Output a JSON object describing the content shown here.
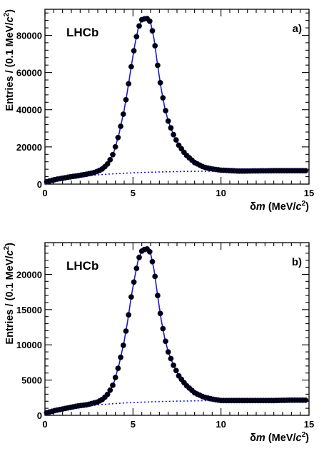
{
  "chart_data": [
    {
      "type": "scatter",
      "panel_label": "a)",
      "experiment_label": "LHCb",
      "xlabel": "δm (MeV/c²)",
      "ylabel": "Entries / (0.1 MeV/c²)",
      "xlim": [
        0,
        15
      ],
      "ylim": [
        0,
        94000
      ],
      "xticks": [
        0,
        5,
        10,
        15
      ],
      "xtick_labels": [
        "0",
        "5",
        "10",
        "15"
      ],
      "yticks": [
        0,
        20000,
        40000,
        60000,
        80000
      ],
      "ytick_labels": [
        "0",
        "20000",
        "40000",
        "60000",
        "80000"
      ],
      "peak": {
        "x": 5.85,
        "y": 89000
      },
      "background": {
        "start": 1000,
        "end": 7200
      },
      "colors": {
        "data": "#000000",
        "fit": "#1a1ad0"
      },
      "series": [
        {
          "kind": "data",
          "x": [
            0.0,
            0.3,
            0.6,
            0.9,
            1.2,
            1.5,
            1.8,
            2.1,
            2.4,
            2.7,
            3.0,
            3.3,
            3.6,
            3.9,
            4.2,
            4.5,
            4.7,
            4.9,
            5.1,
            5.3,
            5.5,
            5.7,
            5.85,
            6.0,
            6.2,
            6.4,
            6.6,
            6.8,
            7.0,
            7.3,
            7.6,
            8.0,
            8.5,
            9.0,
            9.5,
            10.0,
            11.0,
            12.0,
            13.0,
            14.0,
            15.0
          ],
          "y": [
            1000,
            1800,
            2500,
            3000,
            3500,
            4000,
            4400,
            4900,
            5400,
            6000,
            6900,
            8400,
            11300,
            16700,
            26700,
            39800,
            50900,
            63100,
            74600,
            83900,
            88400,
            89000,
            89000,
            86900,
            77900,
            63900,
            51400,
            41400,
            33900,
            26600,
            20900,
            15800,
            11600,
            9200,
            8100,
            7500,
            7000,
            7100,
            7200,
            7200,
            7200
          ]
        }
      ]
    },
    {
      "type": "scatter",
      "panel_label": "b)",
      "experiment_label": "LHCb",
      "xlabel": "δm (MeV/c²)",
      "ylabel": "Entries / (0.1 MeV/c²)",
      "xlim": [
        0,
        15
      ],
      "ylim": [
        0,
        24500
      ],
      "xticks": [
        0,
        5,
        10,
        15
      ],
      "xtick_labels": [
        "0",
        "5",
        "10",
        "15"
      ],
      "yticks": [
        0,
        5000,
        10000,
        15000,
        20000
      ],
      "ytick_labels": [
        "0",
        "5000",
        "10000",
        "15000",
        "20000"
      ],
      "peak": {
        "x": 5.85,
        "y": 23600
      },
      "background": {
        "start": 300,
        "end": 2150
      },
      "colors": {
        "data": "#000000",
        "fit": "#1a1ad0"
      },
      "series": [
        {
          "kind": "data",
          "x": [
            0.0,
            0.3,
            0.6,
            0.9,
            1.2,
            1.5,
            1.8,
            2.1,
            2.4,
            2.7,
            3.0,
            3.3,
            3.6,
            3.9,
            4.2,
            4.5,
            4.7,
            4.9,
            5.1,
            5.3,
            5.5,
            5.7,
            5.85,
            6.0,
            6.2,
            6.4,
            6.6,
            6.8,
            7.0,
            7.3,
            7.6,
            8.0,
            8.5,
            9.0,
            9.5,
            10.0,
            11.0,
            12.0,
            13.0,
            14.0,
            15.0
          ],
          "y": [
            300,
            500,
            700,
            850,
            1000,
            1150,
            1300,
            1400,
            1500,
            1700,
            1900,
            2300,
            3100,
            4500,
            7100,
            10500,
            13400,
            16800,
            19600,
            22100,
            23300,
            23600,
            23600,
            23000,
            20600,
            17000,
            13600,
            11000,
            9000,
            7100,
            5600,
            4300,
            3200,
            2600,
            2300,
            2100,
            2100,
            2100,
            2100,
            2150,
            2150
          ]
        }
      ]
    }
  ]
}
